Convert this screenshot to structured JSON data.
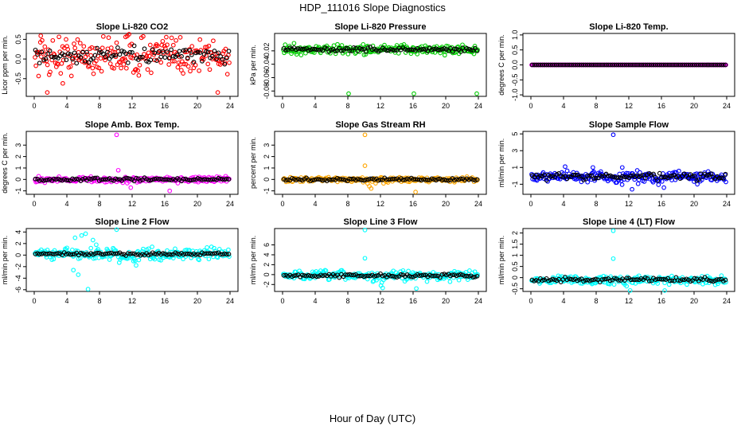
{
  "figure": {
    "title": "HDP_111016  Slope Diagnostics",
    "xlabel": "Hour of Day (UTC)"
  },
  "chart_data": [
    {
      "type": "scatter",
      "title": "Slope Li-820 CO2",
      "ylabel": "Licor ppm per min.",
      "xlim": [
        0,
        24
      ],
      "ylim": [
        -0.95,
        0.65
      ],
      "xticks": [
        0,
        4,
        8,
        12,
        16,
        20,
        24
      ],
      "yticks": [
        -0.5,
        0,
        0.5
      ],
      "ytick_labels": [
        "-0.5",
        "0.0",
        "0.5"
      ],
      "color": "#ff0000",
      "center": 0.08,
      "spread": 0.25,
      "black_spread": 0.09,
      "outliers": [
        [
          1.6,
          -0.85
        ],
        [
          0.8,
          0.59
        ],
        [
          22.5,
          -0.85
        ],
        [
          11.2,
          0.56
        ],
        [
          17.9,
          0.55
        ],
        [
          3.5,
          -0.62
        ]
      ],
      "spikes": []
    },
    {
      "type": "scatter",
      "title": "Slope Li-820 Pressure",
      "ylabel": "kPa per min.",
      "xlim": [
        0,
        24
      ],
      "ylim": [
        -0.088,
        0.006
      ],
      "xticks": [
        0,
        4,
        8,
        12,
        16,
        20,
        24
      ],
      "yticks": [
        -0.08,
        -0.06,
        -0.04,
        -0.02
      ],
      "ytick_labels": [
        "-0.08",
        "-0.06",
        "-0.04",
        "-0.02"
      ],
      "color": "#00cc00",
      "center": -0.018,
      "spread": 0.0035,
      "black_spread": 0.0015,
      "outliers": [
        [
          8.1,
          -0.084
        ],
        [
          16.1,
          -0.084
        ],
        [
          23.8,
          -0.084
        ]
      ],
      "spikes": []
    },
    {
      "type": "scatter",
      "title": "Slope Li-820 Temp.",
      "ylabel": "degrees C per min.",
      "xlim": [
        0,
        24
      ],
      "ylim": [
        -1.05,
        1.05
      ],
      "xticks": [
        0,
        4,
        8,
        12,
        16,
        20,
        24
      ],
      "yticks": [
        -1,
        -0.5,
        0,
        0.5,
        1
      ],
      "ytick_labels": [
        "-1.0",
        "-0.5",
        "0.0",
        "0.5",
        "1.0"
      ],
      "color": "#ff00ff",
      "center": 0,
      "spread": 0,
      "black_spread": 0,
      "outliers": [],
      "spikes": []
    },
    {
      "type": "scatter",
      "title": "Slope Amb. Box Temp.",
      "ylabel": "degrees C per min.",
      "xlim": [
        0,
        24
      ],
      "ylim": [
        -1.3,
        4.2
      ],
      "xticks": [
        0,
        4,
        8,
        12,
        16,
        20,
        24
      ],
      "yticks": [
        -1,
        0,
        1,
        2,
        3
      ],
      "ytick_labels": [
        "-1",
        "0",
        "1",
        "2",
        "3"
      ],
      "color": "#ff00ff",
      "center": 0,
      "spread": 0.12,
      "black_spread": 0.08,
      "outliers": [
        [
          10.1,
          3.9
        ],
        [
          10.3,
          0.8
        ],
        [
          16.6,
          -1.0
        ]
      ],
      "spikes": [
        [
          9.6,
          -0.7
        ],
        [
          11.8,
          -0.9
        ]
      ]
    },
    {
      "type": "scatter",
      "title": "Slope Gas Stream RH",
      "ylabel": "percent per min.",
      "xlim": [
        0,
        24
      ],
      "ylim": [
        -1.3,
        4.2
      ],
      "xticks": [
        0,
        4,
        8,
        12,
        16,
        20,
        24
      ],
      "yticks": [
        -1,
        0,
        1,
        2,
        3
      ],
      "ytick_labels": [
        "-1",
        "0",
        "1",
        "2",
        "3"
      ],
      "color": "#ffa500",
      "center": 0,
      "spread": 0.1,
      "black_spread": 0.06,
      "outliers": [
        [
          10.1,
          3.9
        ],
        [
          10.1,
          1.2
        ],
        [
          16.3,
          -1.1
        ]
      ],
      "spikes": [
        [
          10.8,
          -0.8
        ],
        [
          12.2,
          -1.0
        ]
      ]
    },
    {
      "type": "scatter",
      "title": "Slope Sample Flow",
      "ylabel": "ml/min per min.",
      "xlim": [
        0,
        24
      ],
      "ylim": [
        -2.2,
        5.3
      ],
      "xticks": [
        0,
        4,
        8,
        12,
        16,
        20,
        24
      ],
      "yticks": [
        -1,
        1,
        3,
        5
      ],
      "ytick_labels": [
        "-1",
        "1",
        "3",
        "5"
      ],
      "color": "#0000ff",
      "center": -0.1,
      "spread": 0.3,
      "black_spread": 0.18,
      "outliers": [
        [
          10.1,
          4.9
        ],
        [
          12.4,
          -1.6
        ],
        [
          4.2,
          1.1
        ],
        [
          7.6,
          1.0
        ],
        [
          11.2,
          1.0
        ],
        [
          20.4,
          -1.0
        ],
        [
          16.3,
          -1.4
        ]
      ],
      "spikes": [
        [
          10.2,
          -1.3
        ],
        [
          11.4,
          -1.4
        ],
        [
          15.8,
          -1.2
        ]
      ]
    },
    {
      "type": "scatter",
      "title": "Slope Line 2 Flow",
      "ylabel": "ml/min per min.",
      "xlim": [
        0,
        24
      ],
      "ylim": [
        -6.3,
        4.6
      ],
      "xticks": [
        0,
        4,
        8,
        12,
        16,
        20,
        24
      ],
      "yticks": [
        -6,
        -4,
        -2,
        0,
        2,
        4
      ],
      "ytick_labels": [
        "-6",
        "-4",
        "-2",
        "0",
        "2",
        "4"
      ],
      "color": "#00ffff",
      "center": 0.2,
      "spread": 0.5,
      "black_spread": 0.12,
      "outliers": [
        [
          10.1,
          4.4
        ],
        [
          6.6,
          -5.9
        ],
        [
          4.8,
          -2.6
        ],
        [
          5.4,
          -3.4
        ],
        [
          5.8,
          3.4
        ],
        [
          6.3,
          3.7
        ],
        [
          7.2,
          2.6
        ],
        [
          5.0,
          3.0
        ],
        [
          7.6,
          1.8
        ]
      ],
      "spikes": [
        [
          11.2,
          -1.6
        ],
        [
          12.4,
          -1.5
        ]
      ]
    },
    {
      "type": "scatter",
      "title": "Slope Line 3 Flow",
      "ylabel": "ml/min per min.",
      "xlim": [
        0,
        24
      ],
      "ylim": [
        -3.4,
        9.3
      ],
      "xticks": [
        0,
        4,
        8,
        12,
        16,
        20,
        24
      ],
      "yticks": [
        -2,
        0,
        2,
        4,
        6
      ],
      "ytick_labels": [
        "-2",
        "0",
        "2",
        "4",
        "6"
      ],
      "color": "#00ffff",
      "center": -0.2,
      "spread": 0.45,
      "black_spread": 0.15,
      "outliers": [
        [
          10.1,
          9.0
        ],
        [
          10.1,
          3.3
        ],
        [
          16.4,
          -2.8
        ]
      ],
      "spikes": [
        [
          12.2,
          -2.6
        ],
        [
          11.6,
          -2.0
        ]
      ]
    },
    {
      "type": "scatter",
      "title": "Slope Line 4 (LT) Flow",
      "ylabel": "ml/min per min.",
      "xlim": [
        0,
        24
      ],
      "ylim": [
        -0.62,
        2.2
      ],
      "xticks": [
        0,
        4,
        8,
        12,
        16,
        20,
        24
      ],
      "yticks": [
        -0.5,
        0,
        0.5,
        1,
        1.5,
        2
      ],
      "ytick_labels": [
        "-0.5",
        "0",
        "0.5",
        "1",
        "1.5",
        "2"
      ],
      "color": "#00ffff",
      "center": -0.1,
      "spread": 0.09,
      "black_spread": 0.05,
      "outliers": [
        [
          10.1,
          2.1
        ],
        [
          10.1,
          0.85
        ],
        [
          16.4,
          -0.58
        ]
      ],
      "spikes": [
        [
          12.2,
          -0.55
        ],
        [
          11.4,
          -0.45
        ]
      ]
    }
  ]
}
